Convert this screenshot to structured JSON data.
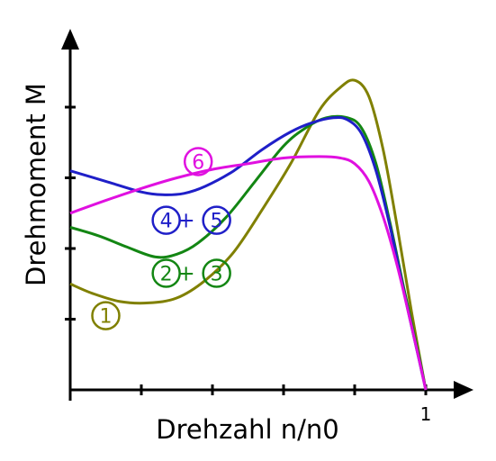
{
  "chart_data": {
    "type": "line",
    "title": "",
    "xlabel": "Drehzahl n/n0",
    "ylabel": "Drehmoment M",
    "x_tick_labels": [
      {
        "x": 1,
        "label": "1"
      }
    ],
    "xlim": [
      0,
      1.1
    ],
    "ylim": [
      0,
      4.5
    ],
    "grid": false,
    "legend": "inline",
    "series": [
      {
        "label": "1",
        "color": "#808000",
        "x": [
          0,
          0.06,
          0.14,
          0.22,
          0.3,
          0.38,
          0.46,
          0.54,
          0.62,
          0.7,
          0.76,
          0.8,
          0.84,
          0.88,
          0.92,
          0.96,
          1.0
        ],
        "y": [
          1.5,
          1.37,
          1.25,
          1.23,
          1.3,
          1.55,
          1.95,
          2.55,
          3.2,
          3.95,
          4.28,
          4.38,
          4.15,
          3.4,
          2.3,
          1.1,
          0.0
        ]
      },
      {
        "label": "2+3",
        "color": "#138613",
        "x": [
          0,
          0.08,
          0.16,
          0.24,
          0.3,
          0.36,
          0.44,
          0.52,
          0.6,
          0.66,
          0.72,
          0.78,
          0.82,
          0.86,
          0.9,
          0.94,
          0.98,
          1.0
        ],
        "y": [
          2.3,
          2.18,
          2.02,
          1.88,
          1.92,
          2.08,
          2.45,
          2.95,
          3.45,
          3.7,
          3.85,
          3.85,
          3.7,
          3.2,
          2.35,
          1.4,
          0.5,
          0.0
        ]
      },
      {
        "label": "4+5",
        "color": "#1f1fc8",
        "x": [
          0,
          0.1,
          0.2,
          0.26,
          0.32,
          0.38,
          0.46,
          0.54,
          0.62,
          0.68,
          0.74,
          0.78,
          0.82,
          0.86,
          0.9,
          0.94,
          0.98,
          1.0
        ],
        "y": [
          3.1,
          2.95,
          2.8,
          2.76,
          2.78,
          2.88,
          3.1,
          3.4,
          3.65,
          3.78,
          3.85,
          3.82,
          3.62,
          3.1,
          2.3,
          1.35,
          0.45,
          0.0
        ]
      },
      {
        "label": "6",
        "color": "#e010e0",
        "x": [
          0,
          0.1,
          0.2,
          0.3,
          0.4,
          0.5,
          0.6,
          0.7,
          0.76,
          0.8,
          0.84,
          0.88,
          0.92,
          0.96,
          1.0
        ],
        "y": [
          2.5,
          2.68,
          2.85,
          3.0,
          3.12,
          3.2,
          3.28,
          3.3,
          3.28,
          3.2,
          2.95,
          2.45,
          1.75,
          0.9,
          0.0
        ]
      }
    ],
    "annotations": [
      {
        "series": "1",
        "parts": [
          "1"
        ],
        "x": 0.1,
        "y": 1.05
      },
      {
        "series": "2+3",
        "parts": [
          "2",
          "+",
          "3"
        ],
        "x": 0.27,
        "y": 1.65
      },
      {
        "series": "4+5",
        "parts": [
          "4",
          "+",
          "5"
        ],
        "x": 0.27,
        "y": 2.4
      },
      {
        "series": "6",
        "parts": [
          "6"
        ],
        "x": 0.36,
        "y": 3.23
      }
    ]
  }
}
